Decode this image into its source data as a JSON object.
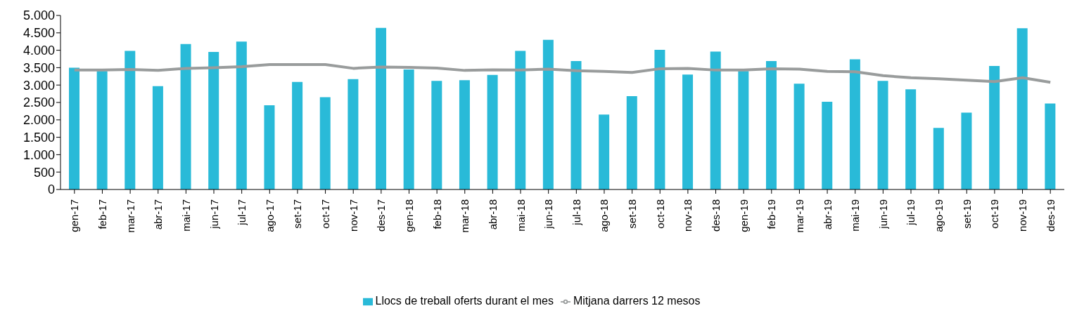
{
  "chart_data": {
    "type": "bar",
    "categories": [
      "gen-17",
      "feb-17",
      "mar-17",
      "abr-17",
      "mai-17",
      "jun-17",
      "jul-17",
      "ago-17",
      "set-17",
      "oct-17",
      "nov-17",
      "des-17",
      "gen-18",
      "feb-18",
      "mar-18",
      "abr-18",
      "mai-18",
      "jun-18",
      "jul-18",
      "ago-18",
      "set-18",
      "oct-18",
      "nov-18",
      "des-18",
      "gen-19",
      "feb-19",
      "mar-19",
      "abr-19",
      "mai-19",
      "jun-19",
      "jul-19",
      "ago-19",
      "set-19",
      "oct-19",
      "nov-19",
      "des-19"
    ],
    "series": [
      {
        "name": "Llocs de treball oferts durant el mes",
        "color": "#29bad8",
        "values": [
          3500,
          3400,
          3980,
          2970,
          4180,
          3950,
          4250,
          2420,
          3090,
          2650,
          3170,
          4640,
          3450,
          3120,
          3140,
          3290,
          3980,
          4300,
          3690,
          2150,
          2680,
          4010,
          3300,
          3960,
          3400,
          3690,
          3040,
          2520,
          3740,
          3120,
          2880,
          1770,
          2210,
          3550,
          4630,
          2470
        ]
      },
      {
        "name": "Mitjana darrers 12 mesos",
        "type": "line",
        "color": "#999c9c",
        "values": [
          3430,
          3430,
          3450,
          3420,
          3480,
          3500,
          3530,
          3590,
          3590,
          3590,
          3480,
          3520,
          3510,
          3490,
          3420,
          3440,
          3430,
          3460,
          3410,
          3390,
          3360,
          3470,
          3480,
          3430,
          3430,
          3470,
          3460,
          3390,
          3380,
          3270,
          3210,
          3180,
          3140,
          3100,
          3210,
          3080
        ]
      }
    ],
    "ylim": [
      0,
      5000
    ],
    "yticks": [
      0,
      500,
      {
        "value": 1000,
        "label": "1.000"
      },
      {
        "value": 1500,
        "label": "1.500"
      },
      {
        "value": 2000,
        "label": "2.000"
      },
      {
        "value": 2500,
        "label": "2.500"
      },
      {
        "value": 3000,
        "label": "3.000"
      },
      {
        "value": 3500,
        "label": "3.500"
      },
      {
        "value": 4000,
        "label": "4.000"
      },
      {
        "value": 4500,
        "label": "4.500"
      },
      {
        "value": 5000,
        "label": "5.000"
      }
    ],
    "grid": false,
    "legend": "bottom",
    "marker": "none",
    "line_style": "solid"
  }
}
